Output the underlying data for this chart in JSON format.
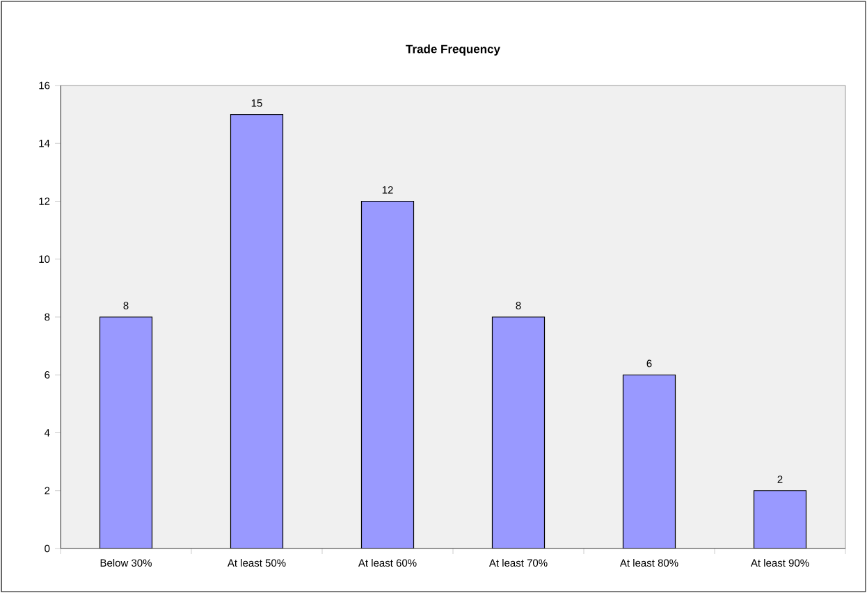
{
  "chart_data": {
    "type": "bar",
    "title": "Trade Frequency",
    "categories": [
      "Below 30%",
      "At least 50%",
      "At least 60%",
      "At least 70%",
      "At least 80%",
      "At least 90%"
    ],
    "values": [
      8,
      15,
      12,
      8,
      6,
      2
    ],
    "color": "#9999ff",
    "ylim": [
      0,
      16
    ],
    "yticks": [
      0,
      2,
      4,
      6,
      8,
      10,
      12,
      14,
      16
    ],
    "data_labels": true
  }
}
